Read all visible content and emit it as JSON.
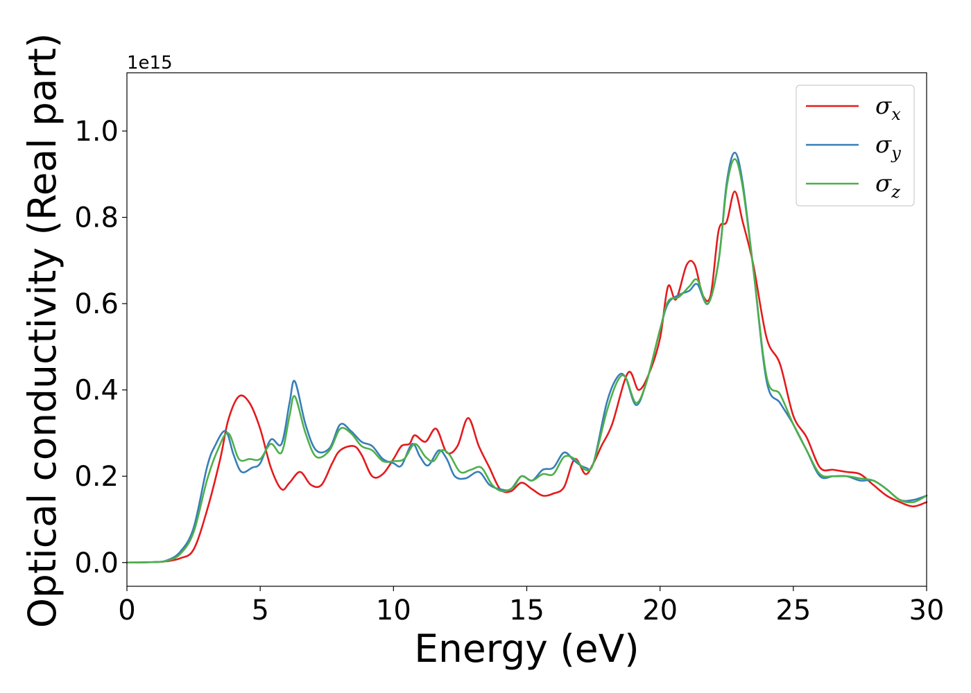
{
  "chart_data": {
    "type": "line",
    "title": "",
    "xlabel": "Energy (eV)",
    "ylabel": "Optical conductivity (Real part)",
    "y_offset_text": "1e15",
    "y_multiplier": 1000000000000000.0,
    "xlim": [
      0,
      30
    ],
    "ylim": [
      -0.055,
      1.135
    ],
    "xticks": [
      0,
      5,
      10,
      15,
      20,
      25,
      30
    ],
    "xtick_labels": [
      "0",
      "5",
      "10",
      "15",
      "20",
      "25",
      "30"
    ],
    "yticks": [
      0.0,
      0.2,
      0.4,
      0.6,
      0.8,
      1.0
    ],
    "ytick_labels": [
      "0.0",
      "0.2",
      "0.4",
      "0.6",
      "0.8",
      "1.0"
    ],
    "grid": false,
    "legend_position": "top-right",
    "series": [
      {
        "name": "σx",
        "legend_symbol": "σ",
        "legend_subscript": "x",
        "color": "#e41a1c",
        "points": [
          [
            0,
            0
          ],
          [
            1,
            0.001
          ],
          [
            1.5,
            0.003
          ],
          [
            2,
            0.01
          ],
          [
            2.5,
            0.03
          ],
          [
            3,
            0.12
          ],
          [
            3.5,
            0.24
          ],
          [
            3.8,
            0.33
          ],
          [
            4.2,
            0.385
          ],
          [
            4.6,
            0.37
          ],
          [
            5,
            0.31
          ],
          [
            5.4,
            0.22
          ],
          [
            5.8,
            0.17
          ],
          [
            6.1,
            0.185
          ],
          [
            6.5,
            0.21
          ],
          [
            6.9,
            0.18
          ],
          [
            7.3,
            0.18
          ],
          [
            7.7,
            0.23
          ],
          [
            8,
            0.26
          ],
          [
            8.5,
            0.27
          ],
          [
            8.8,
            0.25
          ],
          [
            9.2,
            0.2
          ],
          [
            9.6,
            0.205
          ],
          [
            10,
            0.24
          ],
          [
            10.3,
            0.27
          ],
          [
            10.6,
            0.275
          ],
          [
            10.8,
            0.295
          ],
          [
            11.2,
            0.28
          ],
          [
            11.6,
            0.31
          ],
          [
            12,
            0.255
          ],
          [
            12.4,
            0.27
          ],
          [
            12.8,
            0.335
          ],
          [
            13.2,
            0.27
          ],
          [
            13.6,
            0.22
          ],
          [
            14,
            0.17
          ],
          [
            14.4,
            0.165
          ],
          [
            14.8,
            0.185
          ],
          [
            15.2,
            0.17
          ],
          [
            15.6,
            0.155
          ],
          [
            16,
            0.16
          ],
          [
            16.4,
            0.175
          ],
          [
            16.8,
            0.24
          ],
          [
            17.2,
            0.205
          ],
          [
            17.5,
            0.23
          ],
          [
            17.8,
            0.27
          ],
          [
            18.2,
            0.32
          ],
          [
            18.8,
            0.44
          ],
          [
            19.2,
            0.4
          ],
          [
            19.6,
            0.44
          ],
          [
            20,
            0.52
          ],
          [
            20.3,
            0.64
          ],
          [
            20.6,
            0.61
          ],
          [
            21,
            0.69
          ],
          [
            21.3,
            0.69
          ],
          [
            21.6,
            0.62
          ],
          [
            21.9,
            0.62
          ],
          [
            22.2,
            0.77
          ],
          [
            22.5,
            0.79
          ],
          [
            22.8,
            0.86
          ],
          [
            23.1,
            0.79
          ],
          [
            23.5,
            0.69
          ],
          [
            24,
            0.52
          ],
          [
            24.5,
            0.46
          ],
          [
            25,
            0.34
          ],
          [
            25.5,
            0.29
          ],
          [
            26,
            0.22
          ],
          [
            26.5,
            0.215
          ],
          [
            27,
            0.21
          ],
          [
            27.5,
            0.205
          ],
          [
            28,
            0.18
          ],
          [
            28.5,
            0.155
          ],
          [
            29,
            0.14
          ],
          [
            29.5,
            0.13
          ],
          [
            30,
            0.14
          ]
        ]
      },
      {
        "name": "σy",
        "legend_symbol": "σ",
        "legend_subscript": "y",
        "color": "#377eb8",
        "points": [
          [
            0,
            0
          ],
          [
            1,
            0.001
          ],
          [
            1.5,
            0.005
          ],
          [
            2,
            0.025
          ],
          [
            2.5,
            0.08
          ],
          [
            3,
            0.22
          ],
          [
            3.3,
            0.27
          ],
          [
            3.7,
            0.305
          ],
          [
            4,
            0.25
          ],
          [
            4.3,
            0.21
          ],
          [
            4.7,
            0.22
          ],
          [
            5,
            0.23
          ],
          [
            5.4,
            0.285
          ],
          [
            5.8,
            0.275
          ],
          [
            6.1,
            0.37
          ],
          [
            6.3,
            0.42
          ],
          [
            6.7,
            0.32
          ],
          [
            7.1,
            0.26
          ],
          [
            7.6,
            0.265
          ],
          [
            8,
            0.32
          ],
          [
            8.4,
            0.305
          ],
          [
            8.8,
            0.28
          ],
          [
            9.2,
            0.27
          ],
          [
            9.6,
            0.24
          ],
          [
            10,
            0.23
          ],
          [
            10.3,
            0.225
          ],
          [
            10.7,
            0.275
          ],
          [
            11,
            0.245
          ],
          [
            11.3,
            0.225
          ],
          [
            11.7,
            0.26
          ],
          [
            12,
            0.24
          ],
          [
            12.3,
            0.2
          ],
          [
            12.7,
            0.195
          ],
          [
            13.2,
            0.21
          ],
          [
            13.6,
            0.18
          ],
          [
            14,
            0.17
          ],
          [
            14.4,
            0.17
          ],
          [
            14.8,
            0.2
          ],
          [
            15.2,
            0.19
          ],
          [
            15.6,
            0.215
          ],
          [
            16,
            0.22
          ],
          [
            16.4,
            0.255
          ],
          [
            16.8,
            0.235
          ],
          [
            17.2,
            0.22
          ],
          [
            17.5,
            0.23
          ],
          [
            18,
            0.37
          ],
          [
            18.4,
            0.43
          ],
          [
            18.7,
            0.43
          ],
          [
            19.1,
            0.365
          ],
          [
            19.5,
            0.42
          ],
          [
            20,
            0.54
          ],
          [
            20.3,
            0.6
          ],
          [
            20.7,
            0.62
          ],
          [
            21.1,
            0.63
          ],
          [
            21.4,
            0.645
          ],
          [
            21.8,
            0.6
          ],
          [
            22.2,
            0.7
          ],
          [
            22.5,
            0.88
          ],
          [
            22.8,
            0.95
          ],
          [
            23.1,
            0.88
          ],
          [
            23.5,
            0.68
          ],
          [
            24,
            0.42
          ],
          [
            24.5,
            0.37
          ],
          [
            25,
            0.32
          ],
          [
            25.5,
            0.26
          ],
          [
            26,
            0.2
          ],
          [
            26.5,
            0.2
          ],
          [
            27,
            0.2
          ],
          [
            27.5,
            0.19
          ],
          [
            28,
            0.19
          ],
          [
            28.5,
            0.17
          ],
          [
            29,
            0.145
          ],
          [
            29.5,
            0.145
          ],
          [
            30,
            0.155
          ]
        ]
      },
      {
        "name": "σz",
        "legend_symbol": "σ",
        "legend_subscript": "z",
        "color": "#4daf4a",
        "points": [
          [
            0,
            0
          ],
          [
            1,
            0.001
          ],
          [
            1.5,
            0.004
          ],
          [
            2,
            0.02
          ],
          [
            2.5,
            0.07
          ],
          [
            3,
            0.19
          ],
          [
            3.4,
            0.26
          ],
          [
            3.8,
            0.3
          ],
          [
            4.2,
            0.24
          ],
          [
            4.6,
            0.24
          ],
          [
            5,
            0.24
          ],
          [
            5.4,
            0.275
          ],
          [
            5.8,
            0.255
          ],
          [
            6.1,
            0.34
          ],
          [
            6.3,
            0.385
          ],
          [
            6.7,
            0.3
          ],
          [
            7.1,
            0.245
          ],
          [
            7.6,
            0.26
          ],
          [
            8,
            0.31
          ],
          [
            8.4,
            0.3
          ],
          [
            8.8,
            0.27
          ],
          [
            9.2,
            0.26
          ],
          [
            9.6,
            0.235
          ],
          [
            10,
            0.235
          ],
          [
            10.4,
            0.24
          ],
          [
            10.8,
            0.275
          ],
          [
            11.2,
            0.245
          ],
          [
            11.5,
            0.235
          ],
          [
            11.8,
            0.26
          ],
          [
            12.1,
            0.25
          ],
          [
            12.5,
            0.21
          ],
          [
            12.9,
            0.215
          ],
          [
            13.3,
            0.22
          ],
          [
            13.7,
            0.18
          ],
          [
            14.1,
            0.165
          ],
          [
            14.5,
            0.175
          ],
          [
            14.8,
            0.2
          ],
          [
            15.2,
            0.19
          ],
          [
            15.6,
            0.205
          ],
          [
            16,
            0.205
          ],
          [
            16.4,
            0.245
          ],
          [
            16.8,
            0.24
          ],
          [
            17.2,
            0.215
          ],
          [
            17.5,
            0.23
          ],
          [
            18,
            0.35
          ],
          [
            18.4,
            0.42
          ],
          [
            18.7,
            0.43
          ],
          [
            19.1,
            0.37
          ],
          [
            19.5,
            0.42
          ],
          [
            20,
            0.54
          ],
          [
            20.3,
            0.605
          ],
          [
            20.7,
            0.615
          ],
          [
            21.1,
            0.64
          ],
          [
            21.4,
            0.655
          ],
          [
            21.8,
            0.6
          ],
          [
            22.2,
            0.7
          ],
          [
            22.5,
            0.87
          ],
          [
            22.8,
            0.935
          ],
          [
            23.1,
            0.87
          ],
          [
            23.5,
            0.68
          ],
          [
            24,
            0.43
          ],
          [
            24.5,
            0.39
          ],
          [
            25,
            0.32
          ],
          [
            25.5,
            0.26
          ],
          [
            26,
            0.205
          ],
          [
            26.5,
            0.2
          ],
          [
            27,
            0.2
          ],
          [
            27.5,
            0.195
          ],
          [
            28,
            0.19
          ],
          [
            28.5,
            0.17
          ],
          [
            29,
            0.145
          ],
          [
            29.5,
            0.14
          ],
          [
            30,
            0.155
          ]
        ]
      }
    ]
  }
}
